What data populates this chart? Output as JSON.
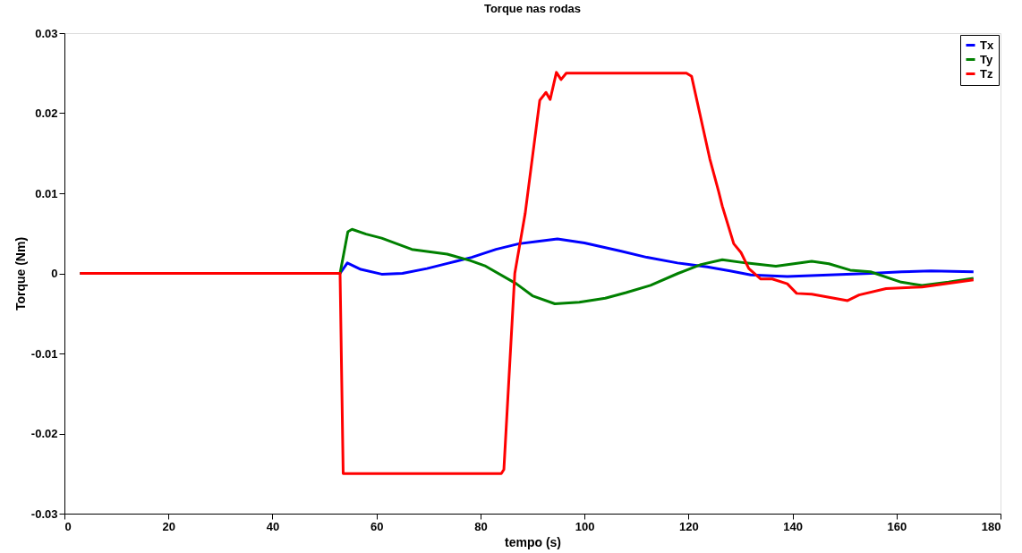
{
  "chart_data": {
    "type": "line",
    "title": "Torque nas rodas",
    "xlabel": "tempo (s)",
    "ylabel": "Torque (Nm)",
    "xlim": [
      0,
      180
    ],
    "xticks": [
      0,
      20,
      40,
      60,
      80,
      100,
      120,
      140,
      160,
      180
    ],
    "ylim": [
      -0.03,
      0.03
    ],
    "yticks": [
      -0.03,
      -0.02,
      -0.01,
      0,
      0.01,
      0.02,
      0.03
    ],
    "grid": false,
    "legend": "top right",
    "marker": "none",
    "line_style": "solid",
    "series": [
      {
        "name": "Tx",
        "color": "#0000ff",
        "x": [
          3,
          53,
          54.4,
          57,
          61,
          65,
          69.7,
          74,
          78.3,
          83,
          87.4,
          91,
          94.8,
          100,
          106.9,
          112,
          117.9,
          123.6,
          128,
          132,
          139,
          147,
          155,
          161,
          166.6,
          174.8
        ],
        "values": [
          0,
          0,
          0.0013,
          0.0005,
          -0.0001,
          0,
          0.0006,
          0.0013,
          0.002,
          0.003,
          0.0037,
          0.004,
          0.0043,
          0.0038,
          0.0028,
          0.002,
          0.0013,
          0.0008,
          0.0003,
          -0.0002,
          -0.0004,
          -0.0002,
          0,
          0.0002,
          0.0003,
          0.0002
        ]
      },
      {
        "name": "Ty",
        "color": "#008000",
        "x": [
          3,
          53,
          54.5,
          55.3,
          58,
          61,
          66.8,
          73.6,
          78,
          81,
          86.9,
          90,
          94.3,
          99,
          104,
          108,
          112.7,
          118,
          122.4,
          126.5,
          131,
          136.8,
          143.7,
          147,
          151.1,
          155,
          160.9,
          164.9,
          170,
          174.8
        ],
        "values": [
          0,
          0,
          0.0052,
          0.0055,
          0.0049,
          0.0044,
          0.003,
          0.0024,
          0.0016,
          0.0009,
          -0.0013,
          -0.0028,
          -0.0038,
          -0.0036,
          -0.0031,
          -0.0024,
          -0.0015,
          0,
          0.0011,
          0.0017,
          0.0013,
          0.0009,
          0.0015,
          0.0012,
          0.0004,
          0.0002,
          -0.0011,
          -0.0015,
          -0.0011,
          -0.0006
        ]
      },
      {
        "name": "Tz",
        "color": "#ff0000",
        "x": [
          3,
          53,
          53.6,
          84,
          84.5,
          86.6,
          88.6,
          91.4,
          92.6,
          93.4,
          94.6,
          95.5,
          96.5,
          119.6,
          120.6,
          124.1,
          125.8,
          126.5,
          128.7,
          130.1,
          131.6,
          133.9,
          136.1,
          139,
          140.8,
          143.7,
          150.6,
          152.8,
          158,
          164.9,
          174.8
        ],
        "values": [
          0,
          0,
          -0.025,
          -0.025,
          -0.0245,
          0,
          0.0075,
          0.0216,
          0.0226,
          0.0217,
          0.0251,
          0.0242,
          0.025,
          0.025,
          0.0246,
          0.0143,
          0.0102,
          0.0084,
          0.0037,
          0.0026,
          0.0006,
          -0.0007,
          -0.0007,
          -0.0013,
          -0.0025,
          -0.0026,
          -0.0034,
          -0.0027,
          -0.0019,
          -0.0017,
          -0.0008
        ]
      }
    ]
  }
}
